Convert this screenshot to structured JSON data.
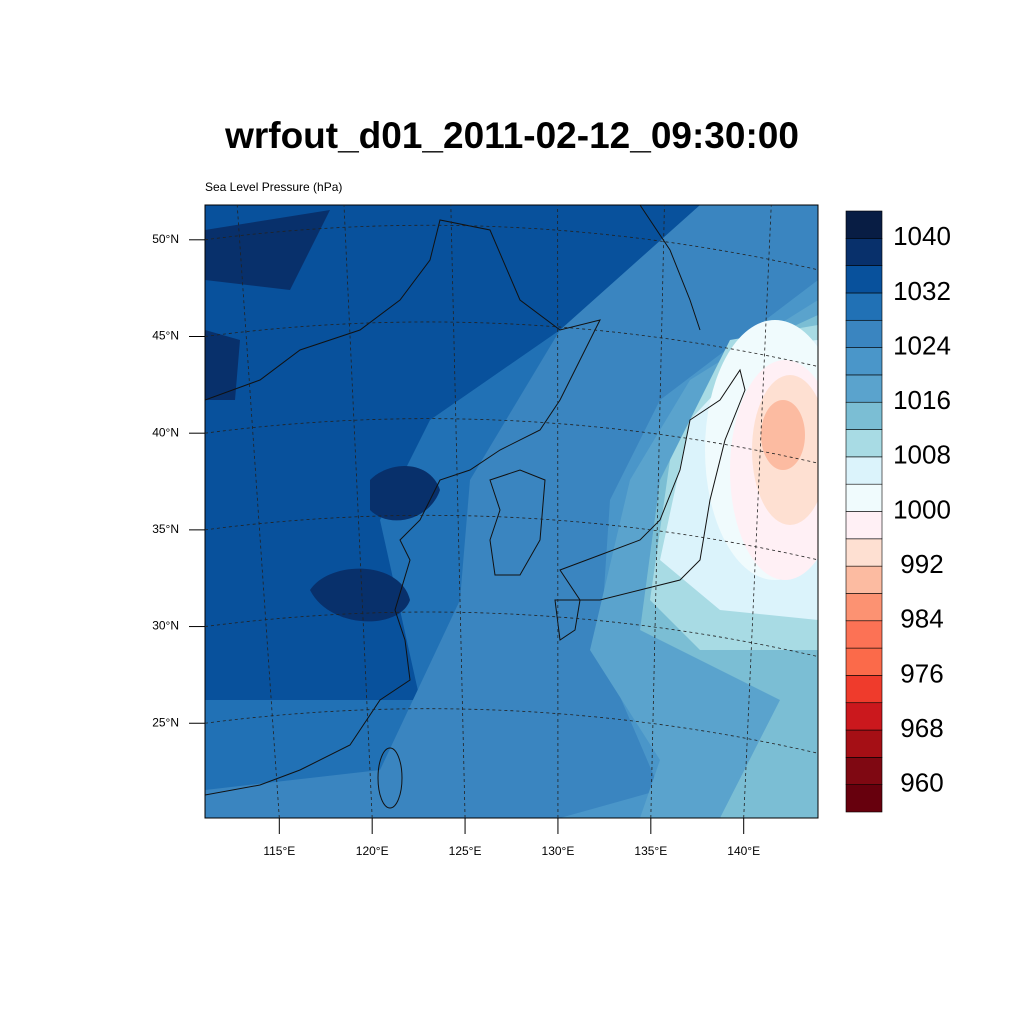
{
  "chart_data": {
    "type": "contour-map",
    "title": "wrfout_d01_2011-02-12_09:30:00",
    "subtitle": "Sea Level Pressure (hPa)",
    "xlim": [
      111,
      144
    ],
    "ylim": [
      20.1,
      51.8
    ],
    "xticks": [
      {
        "value": 115,
        "label": "115°E"
      },
      {
        "value": 120,
        "label": "120°E"
      },
      {
        "value": 125,
        "label": "125°E"
      },
      {
        "value": 130,
        "label": "130°E"
      },
      {
        "value": 135,
        "label": "135°E"
      },
      {
        "value": 140,
        "label": "140°E"
      }
    ],
    "yticks": [
      {
        "value": 25,
        "label": "25°N"
      },
      {
        "value": 30,
        "label": "30°N"
      },
      {
        "value": 35,
        "label": "35°N"
      },
      {
        "value": 40,
        "label": "40°N"
      },
      {
        "value": 45,
        "label": "45°N"
      },
      {
        "value": 50,
        "label": "50°N"
      }
    ],
    "colorbar_ticks": [
      960,
      968,
      976,
      984,
      992,
      1000,
      1008,
      1016,
      1024,
      1032,
      1040
    ],
    "colors": [
      "#67000d",
      "#7f0812",
      "#a50f15",
      "#cb181d",
      "#ef3b2c",
      "#fb6a4a",
      "#fc7255",
      "#fc9272",
      "#fcbba1",
      "#fee0d2",
      "#fff0f5",
      "#f0fbfd",
      "#dbf3fb",
      "#a8dbe4",
      "#7bbed4",
      "#5aa3cd",
      "#4a96c9",
      "#3a85c0",
      "#2171b5",
      "#08519c",
      "#08306b",
      "#081d44"
    ],
    "grid": true
  }
}
